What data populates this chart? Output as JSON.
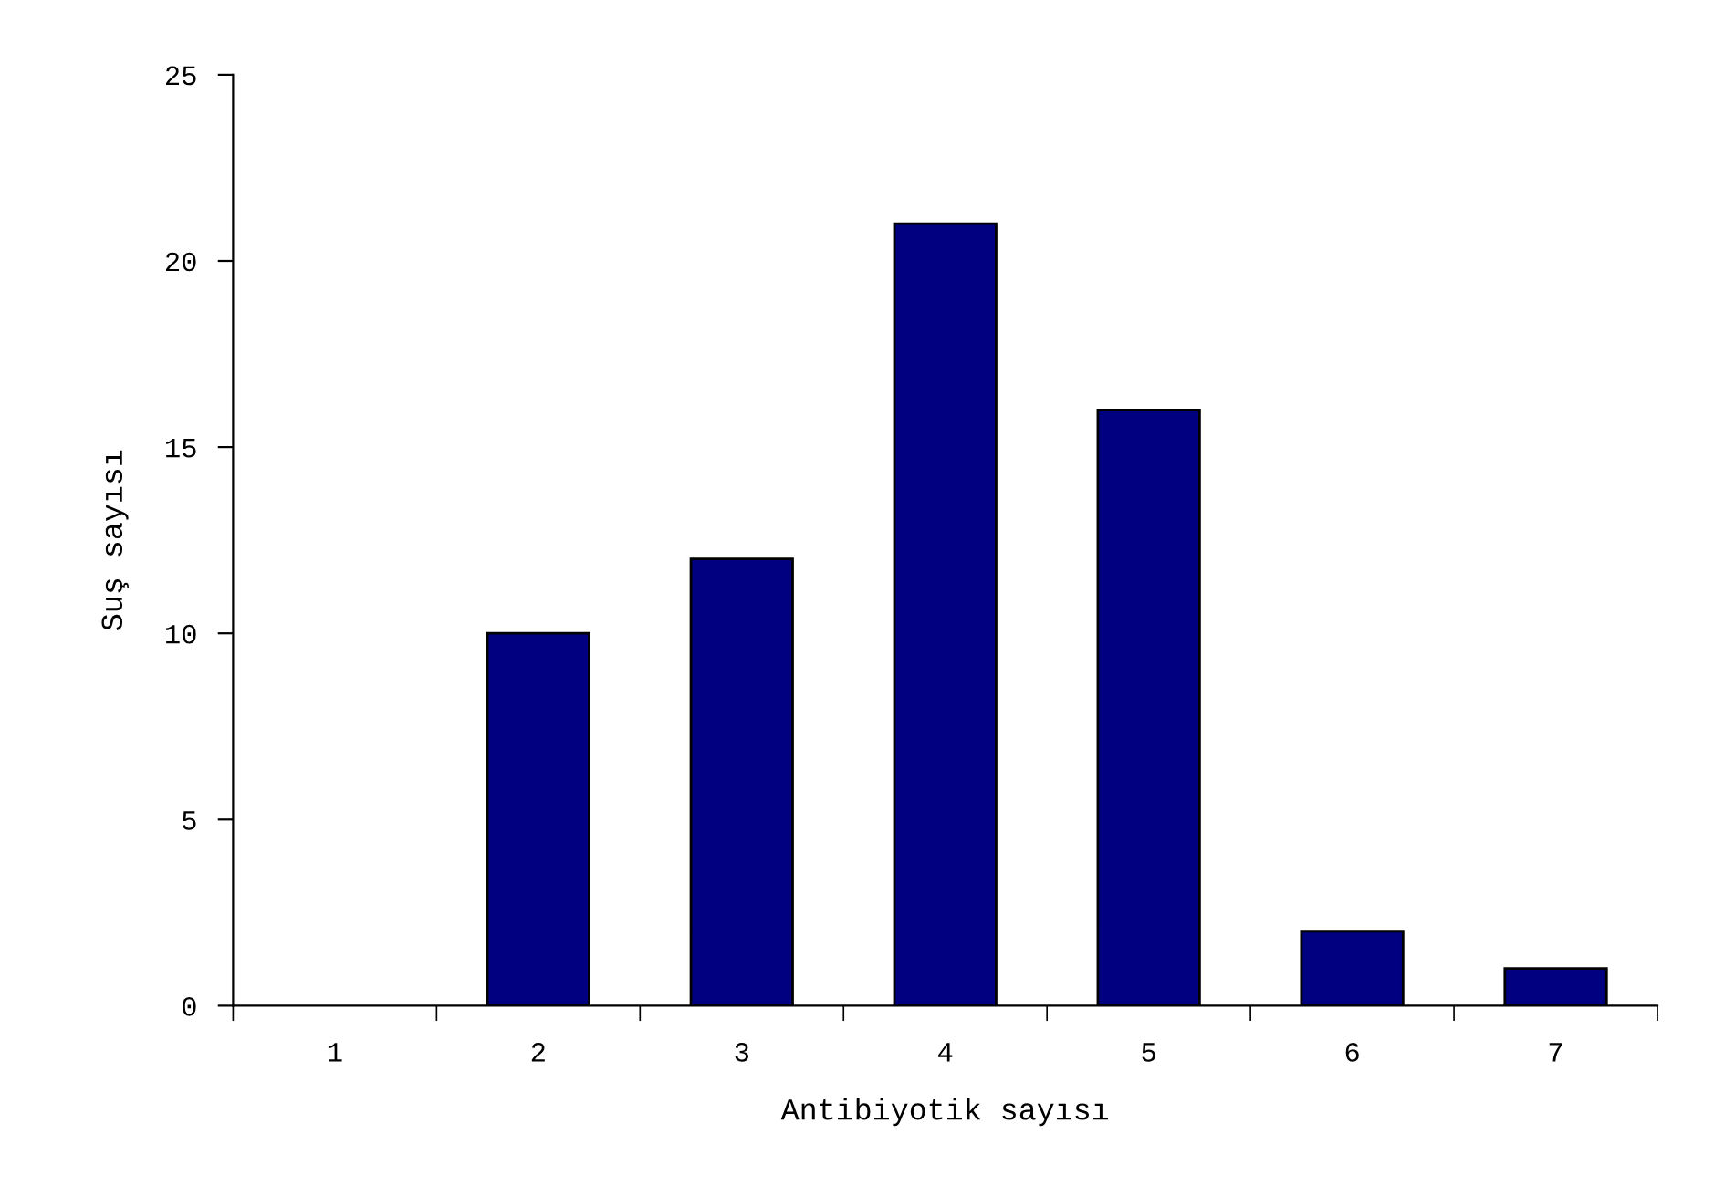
{
  "chart_data": {
    "type": "bar",
    "xlabel": "Antibiyotik sayısı",
    "ylabel": "Suş sayısı",
    "categories": [
      "1",
      "2",
      "3",
      "4",
      "5",
      "6",
      "7"
    ],
    "values": [
      0,
      10,
      12,
      21,
      16,
      2,
      1
    ],
    "color": "#000080",
    "ylim": [
      0,
      25
    ],
    "yticks": [
      0,
      5,
      10,
      15,
      20,
      25
    ],
    "grid": false
  }
}
